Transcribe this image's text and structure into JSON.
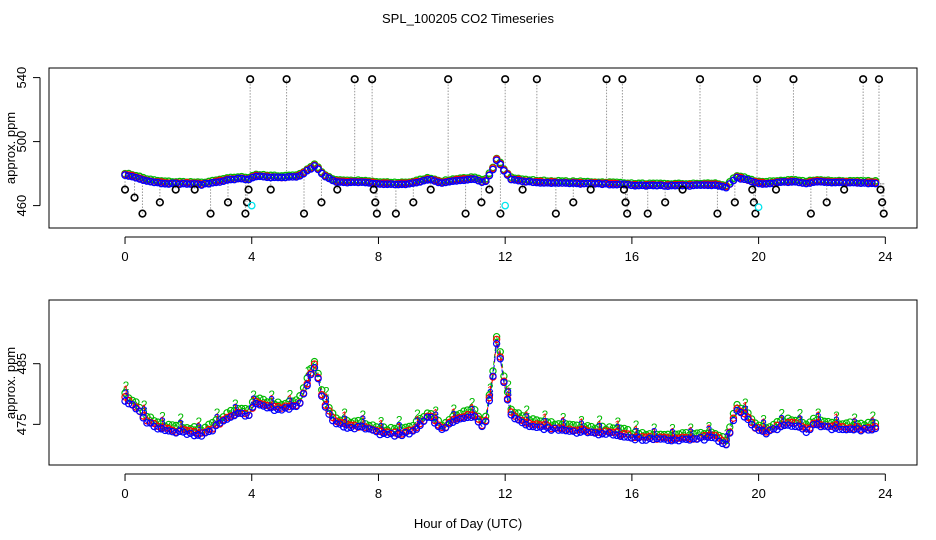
{
  "figure": {
    "title": "SPL_100205  CO2 Timeseries",
    "xlabel": "Hour of Day (UTC)"
  },
  "colors": {
    "black": "#000000",
    "red": "#ff0000",
    "green": "#00bb00",
    "blue": "#0000ff",
    "cyan": "#00e5ee",
    "gray": "#999999"
  },
  "chart_data": [
    {
      "type": "scatter",
      "panel": "top",
      "ylabel": "approx. ppm",
      "xlim": [
        -2.4,
        25
      ],
      "ylim": [
        446,
        546
      ],
      "xticks": [
        0,
        4,
        8,
        12,
        16,
        20,
        24
      ],
      "yticks": [
        460,
        500,
        540
      ],
      "series": [
        {
          "name": "black",
          "points": [
            [
              0,
              470
            ],
            [
              0.3,
              465
            ],
            [
              0.55,
              455
            ],
            [
              1.1,
              462
            ],
            [
              1.6,
              470
            ],
            [
              2.2,
              470
            ],
            [
              2.7,
              455
            ],
            [
              3.25,
              462
            ],
            [
              3.8,
              455
            ],
            [
              3.85,
              462
            ],
            [
              3.9,
              470
            ],
            [
              3.95,
              539
            ],
            [
              4.6,
              470
            ],
            [
              5.1,
              539
            ],
            [
              5.65,
              455
            ],
            [
              6.2,
              462
            ],
            [
              6.7,
              470
            ],
            [
              7.25,
              539
            ],
            [
              7.8,
              539
            ],
            [
              7.85,
              470
            ],
            [
              7.9,
              462
            ],
            [
              7.95,
              455
            ],
            [
              8.55,
              455
            ],
            [
              9.1,
              462
            ],
            [
              9.65,
              470
            ],
            [
              10.2,
              539
            ],
            [
              10.75,
              455
            ],
            [
              11.25,
              462
            ],
            [
              11.5,
              470
            ],
            [
              11.85,
              455
            ],
            [
              12.0,
              539
            ],
            [
              12.55,
              470
            ],
            [
              13.0,
              539
            ],
            [
              13.6,
              455
            ],
            [
              14.15,
              462
            ],
            [
              14.7,
              470
            ],
            [
              15.2,
              539
            ],
            [
              15.7,
              539
            ],
            [
              15.75,
              470
            ],
            [
              15.8,
              462
            ],
            [
              15.85,
              455
            ],
            [
              16.5,
              455
            ],
            [
              17.05,
              462
            ],
            [
              17.6,
              470
            ],
            [
              18.15,
              539
            ],
            [
              18.7,
              455
            ],
            [
              19.25,
              462
            ],
            [
              19.8,
              470
            ],
            [
              19.85,
              462
            ],
            [
              19.9,
              455
            ],
            [
              19.95,
              539
            ],
            [
              20.55,
              470
            ],
            [
              21.1,
              539
            ],
            [
              21.65,
              455
            ],
            [
              22.15,
              462
            ],
            [
              22.7,
              470
            ],
            [
              23.3,
              539
            ],
            [
              23.8,
              539
            ],
            [
              23.85,
              470
            ],
            [
              23.9,
              462
            ],
            [
              23.95,
              455
            ]
          ]
        },
        {
          "name": "cyan",
          "points": [
            [
              4.0,
              460
            ],
            [
              12.0,
              460
            ],
            [
              20.0,
              459
            ]
          ]
        }
      ],
      "traces": [
        "red",
        "green",
        "blue"
      ]
    },
    {
      "type": "line",
      "panel": "bottom",
      "ylabel": "approx. ppm",
      "xlim": [
        -2.4,
        25
      ],
      "ylim": [
        468.3,
        495.5
      ],
      "xticks": [
        0,
        4,
        8,
        12,
        16,
        20,
        24
      ],
      "yticks": [
        475,
        485
      ],
      "series": [
        {
          "name": "1",
          "color": "red",
          "offset": 0.3,
          "show_label": true
        },
        {
          "name": "2",
          "color": "green",
          "offset": 1.0,
          "show_label": true
        },
        {
          "name": "3",
          "color": "blue",
          "offset": 0.0,
          "show_label": true
        }
      ],
      "base_profile": [
        [
          0,
          479
        ],
        [
          0.35,
          477.6
        ],
        [
          0.7,
          475.4
        ],
        [
          1.1,
          474.1
        ],
        [
          1.5,
          473.7
        ],
        [
          2.0,
          473.6
        ],
        [
          2.4,
          473.1
        ],
        [
          2.8,
          474.3
        ],
        [
          3.2,
          475.8
        ],
        [
          3.6,
          476.8
        ],
        [
          3.9,
          476.3
        ],
        [
          4.1,
          478.4
        ],
        [
          4.5,
          477.6
        ],
        [
          5.0,
          477.4
        ],
        [
          5.5,
          478.2
        ],
        [
          5.8,
          482.3
        ],
        [
          6.0,
          484.8
        ],
        [
          6.25,
          478.9
        ],
        [
          6.6,
          475.1
        ],
        [
          7.0,
          474.6
        ],
        [
          7.5,
          474.4
        ],
        [
          8.0,
          473.5
        ],
        [
          8.5,
          473.2
        ],
        [
          9.0,
          473.5
        ],
        [
          9.6,
          476.3
        ],
        [
          10.0,
          474.0
        ],
        [
          10.5,
          475.8
        ],
        [
          11.0,
          476.5
        ],
        [
          11.35,
          474.2
        ],
        [
          11.6,
          482.0
        ],
        [
          11.75,
          489.5
        ],
        [
          11.95,
          482.0
        ],
        [
          12.2,
          476.3
        ],
        [
          12.6,
          475.1
        ],
        [
          13.0,
          474.5
        ],
        [
          14.0,
          473.9
        ],
        [
          15.0,
          473.5
        ],
        [
          15.8,
          473.1
        ],
        [
          16.0,
          472.6
        ],
        [
          17.0,
          472.4
        ],
        [
          18.0,
          472.5
        ],
        [
          18.6,
          472.8
        ],
        [
          19.0,
          471.4
        ],
        [
          19.15,
          474.6
        ],
        [
          19.3,
          477.3
        ],
        [
          19.6,
          476.2
        ],
        [
          19.9,
          474.2
        ],
        [
          20.2,
          473.5
        ],
        [
          20.6,
          474.4
        ],
        [
          21.1,
          475.0
        ],
        [
          21.5,
          473.9
        ],
        [
          21.8,
          475.0
        ],
        [
          22.3,
          474.4
        ],
        [
          23.0,
          474.1
        ],
        [
          23.7,
          474.1
        ]
      ]
    }
  ]
}
